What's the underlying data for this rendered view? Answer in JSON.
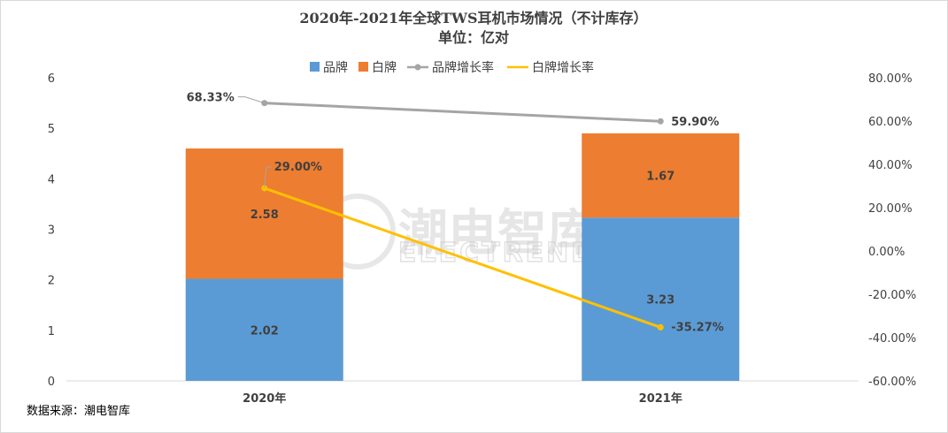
{
  "chart_data": {
    "type": "bar",
    "stacked": true,
    "title": "2020年-2021年全球TWS耳机市场情况（不计库存）",
    "subtitle": "单位：亿对",
    "categories": [
      "2020年",
      "2021年"
    ],
    "series": [
      {
        "name": "品牌",
        "kind": "bar",
        "axis": "left",
        "color": "#5B9BD5",
        "values": [
          2.02,
          3.23
        ],
        "labels": [
          "2.02",
          "3.23"
        ]
      },
      {
        "name": "白牌",
        "kind": "bar",
        "axis": "left",
        "color": "#ED7D31",
        "values": [
          2.58,
          1.67
        ],
        "labels": [
          "2.58",
          "1.67"
        ]
      },
      {
        "name": "品牌增长率",
        "kind": "line",
        "axis": "right",
        "color": "#A5A5A5",
        "values": [
          68.33,
          59.9
        ],
        "labels": [
          "68.33%",
          "59.90%"
        ]
      },
      {
        "name": "白牌增长率",
        "kind": "line",
        "axis": "right",
        "color": "#FFC000",
        "values": [
          29.0,
          -35.27
        ],
        "labels": [
          "29.00%",
          "-35.27%"
        ]
      }
    ],
    "ylim": [
      0,
      6
    ],
    "yticks": [
      "0",
      "1",
      "2",
      "3",
      "4",
      "5",
      "6"
    ],
    "y2lim": [
      -60,
      80
    ],
    "y2ticks": [
      "-60.00%",
      "-40.00%",
      "-20.00%",
      "0.00%",
      "20.00%",
      "40.00%",
      "60.00%",
      "80.00%"
    ],
    "grid": false,
    "legend_position": "top-center"
  },
  "source": "数据来源：潮电智库",
  "watermark": {
    "cn": "潮电智库",
    "en": "ELECTREND.NET"
  }
}
